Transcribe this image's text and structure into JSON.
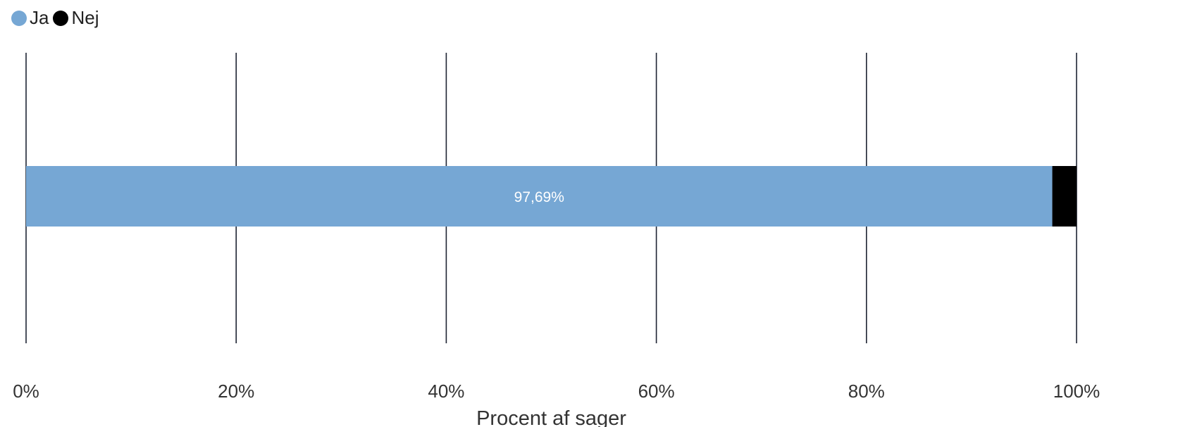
{
  "chart_data": {
    "type": "bar",
    "orientation": "horizontal",
    "stacked": true,
    "categories": [
      ""
    ],
    "series": [
      {
        "name": "Ja",
        "values": [
          97.69
        ],
        "color": "#76a7d4",
        "label": "97,69%"
      },
      {
        "name": "Nej",
        "values": [
          2.31
        ],
        "color": "#000000"
      }
    ],
    "xlabel": "Procent af sager",
    "xlim": [
      0,
      100
    ],
    "x_ticks": [
      0,
      20,
      40,
      60,
      80,
      100
    ],
    "x_tick_labels": [
      "0%",
      "20%",
      "40%",
      "60%",
      "80%",
      "100%"
    ],
    "grid": true,
    "legend_position": "top-left"
  }
}
